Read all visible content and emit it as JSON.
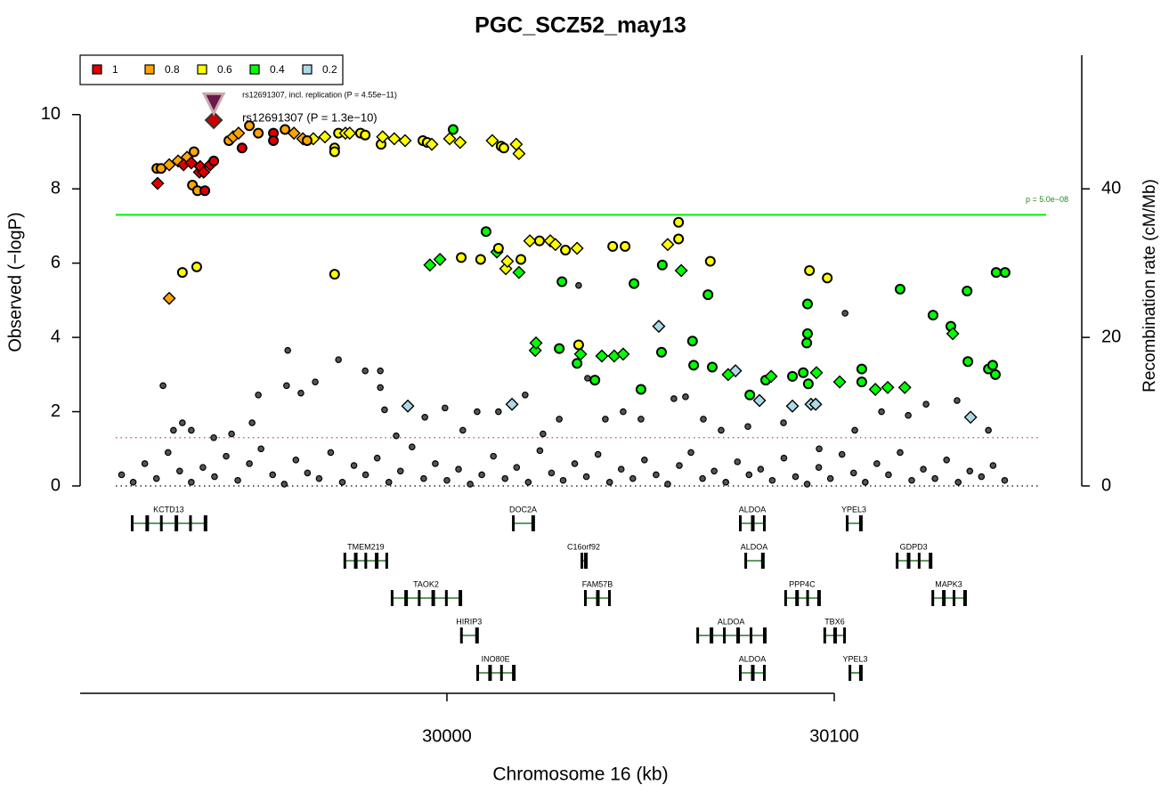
{
  "chart_data": {
    "type": "scatter",
    "title": "PGC_SCZ52_may13",
    "x_label": "Chromosome 16 (kb)",
    "y_label": "Observed (−logP)",
    "y2_label": "Recombination rate (cM/Mb)",
    "xlim": [
      29905.3,
      30163.9
    ],
    "xticks": [
      30000,
      30100
    ],
    "ylim": [
      0,
      11.6
    ],
    "yticks": [
      0,
      2,
      4,
      6,
      8,
      10
    ],
    "y2lim": [
      0,
      58
    ],
    "y2ticks": [
      0,
      20,
      40
    ],
    "legend": "top-left",
    "threshold": {
      "value": 7.3,
      "label": "p = 5.0e−08",
      "color": "#00ee00"
    },
    "ref_lines": [
      {
        "value": 1.3,
        "color": "#cc4444"
      },
      {
        "value": 0,
        "color": "#000000"
      }
    ],
    "annotations": [
      {
        "text": "rs12691307 (P = 1.3e−10)",
        "x": 29939.8,
        "y": 9.85,
        "marker": "diamond",
        "color": "#cc0000"
      },
      {
        "text": "rs12691307, incl. replication (P = 4.55e−11)",
        "x": 29939.8,
        "y": 10.3,
        "marker": "triangle",
        "color": "#6a1a4a"
      }
    ],
    "series": [
      {
        "color": "#555555",
        "x": [
          29926.7,
          29929.4,
          29931.7,
          29934.0,
          29939.8,
          29944.4,
          29949.7,
          29951.3,
          29958.6,
          29958.9,
          29962.3,
          29966.0,
          29972.0,
          29978.9,
          29982.8,
          29982.8,
          29983.9,
          29986.9,
          29994.3,
          29999.5,
          30004.1,
          30007.8,
          30013.3,
          30020.2,
          30024.8,
          30029.0,
          30034.0,
          30036.3,
          30040.9,
          30045.5,
          30050.1,
          30058.6,
          30061.6,
          30066.2,
          30070.8,
          30077.7,
          30086.9,
          30096.1,
          30102.8,
          30105.3,
          30112.2,
          30119.1,
          30123.7,
          30131.7,
          30139.8,
          29916,
          29919,
          29922,
          29925,
          29928,
          29931,
          29934,
          29937,
          29940,
          29943,
          29946,
          29949,
          29952,
          29955,
          29958,
          29961,
          29964,
          29967,
          29970,
          29973,
          29976,
          29979,
          29982,
          29985,
          29988,
          29991,
          29994,
          29997,
          30000,
          30003,
          30006,
          30009,
          30012,
          30015,
          30018,
          30021,
          30024,
          30027,
          30030,
          30033,
          30036,
          30039,
          30042,
          30045,
          30048,
          30051,
          30054,
          30057,
          30060,
          30063,
          30066,
          30069,
          30072,
          30075,
          30078,
          30081,
          30084,
          30087,
          30090,
          30093,
          30096,
          30099,
          30102,
          30105,
          30108,
          30111,
          30114,
          30117,
          30120,
          30123,
          30126,
          30129,
          30132,
          30135,
          30138,
          30141,
          30144
        ],
        "values": [
          2.7,
          1.5,
          1.7,
          1.5,
          1.3,
          1.4,
          1.7,
          2.45,
          2.7,
          3.65,
          2.5,
          2.8,
          3.4,
          3.1,
          3.1,
          2.65,
          2.05,
          1.35,
          1.85,
          2.1,
          1.5,
          2.0,
          2.0,
          2.45,
          1.4,
          1.8,
          5.4,
          2.9,
          1.8,
          2.0,
          1.8,
          2.35,
          2.4,
          1.8,
          1.5,
          1.6,
          1.7,
          1.0,
          4.65,
          1.5,
          2.0,
          1.9,
          2.2,
          2.3,
          1.5,
          0.3,
          0.1,
          0.6,
          0.2,
          0.9,
          0.4,
          0.1,
          0.5,
          0.25,
          0.8,
          0.15,
          0.6,
          1.0,
          0.3,
          0.05,
          0.7,
          0.35,
          0.2,
          0.9,
          0.1,
          0.55,
          0.3,
          0.75,
          0.1,
          0.4,
          1.05,
          0.2,
          0.6,
          0.15,
          0.45,
          0.05,
          0.3,
          0.8,
          0.2,
          0.5,
          0.1,
          0.95,
          0.35,
          0.15,
          0.6,
          0.25,
          0.85,
          0.1,
          0.45,
          0.2,
          0.7,
          0.3,
          0.05,
          0.55,
          0.9,
          0.2,
          0.4,
          0.1,
          0.65,
          0.3,
          0.45,
          0.15,
          0.75,
          0.25,
          0.05,
          0.5,
          0.2,
          0.85,
          0.35,
          0.1,
          0.6,
          0.3,
          0.9,
          0.15,
          0.45,
          0.2,
          0.7,
          0.1,
          0.4,
          0.25,
          0.55,
          0.15
        ]
      },
      {
        "name": "0.2",
        "color": "#add8e6",
        "x": [
          30054.7,
          30074.5,
          30080.7,
          30089.2,
          30094.0,
          30095.2,
          30135.2,
          30016.8,
          29989.9
        ],
        "values": [
          4.3,
          3.1,
          2.3,
          2.15,
          2.2,
          2.2,
          1.85,
          2.2,
          2.15
        ],
        "markers": [
          "diamond",
          "diamond",
          "diamond",
          "diamond",
          "diamond",
          "diamond",
          "diamond",
          "diamond",
          "diamond"
        ]
      },
      {
        "name": "0.4",
        "color": "#00ff00",
        "x": [
          29995.6,
          29998.2,
          30001.6,
          30010.1,
          30012.9,
          30018.6,
          30022.8,
          30023.0,
          30029.0,
          30029.7,
          30033.6,
          30034.5,
          30038.2,
          30040.0,
          30043.2,
          30045.5,
          30048.3,
          30050.1,
          30055.4,
          30055.6,
          30060.5,
          30063.4,
          30063.7,
          30067.4,
          30068.5,
          30072.6,
          30078.2,
          30082.3,
          30083.7,
          30089.2,
          30092.0,
          30093.1,
          30092.9,
          30093.1,
          30093.3,
          30095.4,
          30101.4,
          30107.1,
          30107.1,
          30110.6,
          30113.8,
          30117.0,
          30118.2,
          30125.5,
          30130.1,
          30130.6,
          30134.3,
          30134.5,
          30139.8,
          30140.9,
          30141.6,
          30141.8,
          30144.1
        ],
        "values": [
          5.95,
          6.1,
          9.6,
          6.85,
          6.3,
          5.75,
          3.65,
          3.85,
          3.7,
          5.5,
          3.3,
          3.55,
          2.85,
          3.5,
          3.5,
          3.55,
          5.45,
          2.6,
          3.6,
          5.95,
          5.8,
          3.9,
          3.25,
          5.15,
          3.2,
          3.0,
          2.45,
          2.85,
          2.95,
          2.95,
          3.05,
          4.9,
          3.85,
          4.1,
          2.75,
          3.05,
          2.8,
          3.15,
          2.8,
          2.6,
          2.65,
          5.3,
          2.65,
          4.6,
          4.3,
          4.1,
          5.25,
          3.35,
          3.15,
          3.25,
          3.0,
          5.75,
          5.75
        ],
        "markers": [
          "diamond",
          "diamond",
          "circle",
          "circle",
          "diamond",
          "diamond",
          "diamond",
          "diamond",
          "circle",
          "circle",
          "circle",
          "diamond",
          "circle",
          "diamond",
          "diamond",
          "diamond",
          "circle",
          "circle",
          "circle",
          "circle",
          "diamond",
          "circle",
          "circle",
          "circle",
          "circle",
          "diamond",
          "circle",
          "circle",
          "diamond",
          "circle",
          "circle",
          "circle",
          "circle",
          "circle",
          "circle",
          "diamond",
          "diamond",
          "circle",
          "circle",
          "diamond",
          "diamond",
          "circle",
          "diamond",
          "circle",
          "circle",
          "diamond",
          "circle",
          "circle",
          "circle",
          "circle",
          "circle",
          "circle",
          "circle"
        ]
      },
      {
        "name": "0.6",
        "color": "#ffff00",
        "x": [
          29931.7,
          29935.4,
          29965.5,
          29968.5,
          29971.0,
          29971.0,
          29971.0,
          29972.0,
          29973.8,
          29974.9,
          29977.7,
          29978.9,
          29983.0,
          29983.4,
          29986.4,
          29989.2,
          29993.8,
          29994.9,
          29996.1,
          30000.7,
          30003.4,
          30003.7,
          30008.7,
          30011.7,
          30013.3,
          30014.0,
          30014.7,
          30015.2,
          30015.6,
          30017.9,
          30018.6,
          30019.1,
          30021.4,
          30023.9,
          30026.7,
          30028.0,
          30030.6,
          30033.6,
          30034.0,
          30042.8,
          30046.0,
          30057.0,
          30059.8,
          30059.8,
          30068.0,
          30093.6,
          30098.2
        ],
        "values": [
          5.75,
          5.9,
          9.35,
          9.4,
          9.1,
          9.0,
          5.7,
          9.5,
          9.5,
          9.5,
          9.5,
          9.45,
          9.2,
          9.4,
          9.35,
          9.3,
          9.3,
          9.25,
          9.2,
          9.35,
          9.25,
          6.15,
          6.1,
          9.3,
          6.4,
          9.15,
          9.1,
          5.85,
          6.05,
          9.2,
          8.95,
          6.1,
          6.6,
          6.6,
          6.6,
          6.5,
          6.35,
          6.4,
          3.8,
          6.45,
          6.45,
          6.5,
          6.65,
          7.1,
          6.05,
          5.8,
          5.6
        ],
        "markers": [
          "circle",
          "circle",
          "diamond",
          "diamond",
          "circle",
          "circle",
          "circle",
          "circle",
          "diamond",
          "diamond",
          "circle",
          "circle",
          "circle",
          "diamond",
          "diamond",
          "diamond",
          "circle",
          "circle",
          "diamond",
          "diamond",
          "diamond",
          "circle",
          "circle",
          "diamond",
          "circle",
          "circle",
          "circle",
          "diamond",
          "diamond",
          "diamond",
          "diamond",
          "circle",
          "diamond",
          "circle",
          "diamond",
          "diamond",
          "circle",
          "diamond",
          "circle",
          "circle",
          "circle",
          "diamond",
          "circle",
          "circle",
          "circle",
          "circle",
          "circle"
        ]
      },
      {
        "name": "0.8",
        "color": "#ffa500",
        "x": [
          29925.1,
          29926.2,
          29928.3,
          29930.6,
          29932.9,
          29934.7,
          29934.3,
          29935.6,
          29943.7,
          29944.8,
          29946.2,
          29949.0,
          29951.3,
          29958.2,
          29960.5,
          29962.8,
          29963.9,
          29928.3
        ],
        "values": [
          8.55,
          8.55,
          8.65,
          8.75,
          8.85,
          9.0,
          8.1,
          7.95,
          9.3,
          9.4,
          9.5,
          9.7,
          9.5,
          9.6,
          9.5,
          9.35,
          9.3,
          5.05
        ],
        "markers": [
          "circle",
          "circle",
          "diamond",
          "diamond",
          "diamond",
          "circle",
          "circle",
          "circle",
          "circle",
          "diamond",
          "diamond",
          "circle",
          "circle",
          "circle",
          "diamond",
          "diamond",
          "circle",
          "diamond"
        ]
      },
      {
        "name": "1",
        "color": "#dd0000",
        "x": [
          29925.3,
          29932.0,
          29934.0,
          29936.1,
          29936.3,
          29937.2,
          29937.5,
          29938.9,
          29939.8,
          29947.1,
          29955.2,
          29955.2
        ],
        "values": [
          8.15,
          8.65,
          8.7,
          8.45,
          8.6,
          8.45,
          7.95,
          8.65,
          8.75,
          9.1,
          9.5,
          9.3
        ],
        "markers": [
          "diamond",
          "diamond",
          "diamond",
          "diamond",
          "diamond",
          "diamond",
          "circle",
          "diamond",
          "circle",
          "circle",
          "circle",
          "circle"
        ]
      }
    ],
    "genes": [
      {
        "name": "KCTD13",
        "start": 29918.4,
        "end": 29937.9,
        "row": 0
      },
      {
        "name": "DOC2A",
        "start": 30016.8,
        "end": 30022.5,
        "row": 0
      },
      {
        "name": "ALDOA",
        "start": 30075.4,
        "end": 30082.3,
        "row": 0
      },
      {
        "name": "YPEL3",
        "start": 30103.0,
        "end": 30107.1,
        "row": 0
      },
      {
        "name": "TMEM219",
        "start": 29973.3,
        "end": 29984.8,
        "row": 1
      },
      {
        "name": "C16orf92",
        "start": 30034.5,
        "end": 30036.1,
        "row": 1
      },
      {
        "name": "ALDOA",
        "start": 30076.8,
        "end": 30081.8,
        "row": 1
      },
      {
        "name": "GDPD3",
        "start": 30115.9,
        "end": 30125.1,
        "row": 1
      },
      {
        "name": "TAOK2",
        "start": 29985.5,
        "end": 30003.7,
        "row": 2
      },
      {
        "name": "FAM57B",
        "start": 30035.4,
        "end": 30042.3,
        "row": 2
      },
      {
        "name": "PPP4C",
        "start": 30087.1,
        "end": 30096.3,
        "row": 2
      },
      {
        "name": "MAPK3",
        "start": 30125.1,
        "end": 30134.0,
        "row": 2
      },
      {
        "name": "HIRIP3",
        "start": 30003.4,
        "end": 30008.0,
        "row": 3
      },
      {
        "name": "ALDOA",
        "start": 30064.4,
        "end": 30082.3,
        "row": 3
      },
      {
        "name": "TBX6",
        "start": 30097.2,
        "end": 30103.0,
        "row": 3
      },
      {
        "name": "INO80E",
        "start": 30007.6,
        "end": 30017.5,
        "row": 4
      },
      {
        "name": "ALDOA",
        "start": 30075.4,
        "end": 30082.3,
        "row": 4
      },
      {
        "name": "YPEL3",
        "start": 30103.7,
        "end": 30107.1,
        "row": 4
      }
    ]
  }
}
